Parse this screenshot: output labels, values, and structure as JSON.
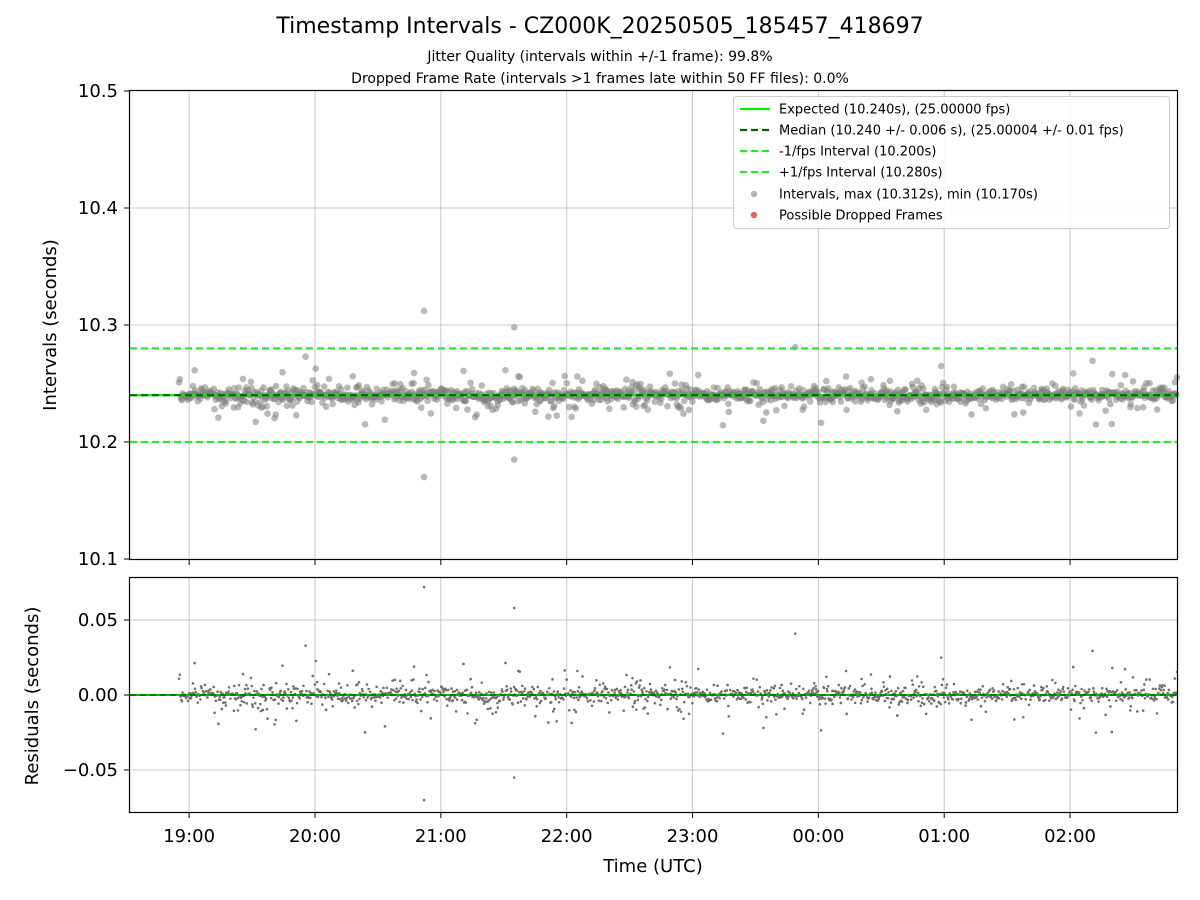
{
  "figure": {
    "title": "Timestamp Intervals - CZ000K_20250505_185457_418697",
    "subtitle_lines": [
      "Jitter Quality (intervals within +/-1 frame): 99.8%",
      "Dropped Frame Rate (intervals >1 frames late within 50 FF files): 0.0%"
    ]
  },
  "colors": {
    "expected": "#00ee00",
    "median": "#006400",
    "interval_band": "#22ee22",
    "points_top": "#808080",
    "points_residual": "#707070",
    "dropped": "#f06060",
    "grid": "#b0b0b0",
    "zero_line": "#00bb00"
  },
  "chart_data": [
    {
      "type": "scatter",
      "panel": "intervals",
      "ylabel": "Intervals (seconds)",
      "ylim": [
        10.1,
        10.5
      ],
      "yticks": [
        10.1,
        10.2,
        10.3,
        10.4,
        10.5
      ],
      "ytick_labels": [
        "10.1",
        "10.2",
        "10.3",
        "10.4",
        "10.5"
      ],
      "grid": true,
      "legend_position": "upper right",
      "x_is_time": true,
      "xlim_hours": [
        18.53,
        26.85
      ],
      "series": [
        {
          "name": "Expected (10.240s), (25.00000 fps)",
          "kind": "hline",
          "y": 10.24,
          "style": "solid"
        },
        {
          "name": "Median (10.240 +/- 0.006 s), (25.00004 +/- 0.01 fps)",
          "kind": "hline",
          "y": 10.24,
          "style": "dashed"
        },
        {
          "name": "-1/fps Interval (10.200s)",
          "kind": "hline",
          "y": 10.2,
          "style": "dashed"
        },
        {
          "name": "+1/fps Interval (10.280s)",
          "kind": "hline",
          "y": 10.28,
          "style": "dashed"
        },
        {
          "name": "Intervals, max (10.312s), min (10.170s)",
          "kind": "scatter",
          "x_range_hours": [
            18.92,
            26.85
          ],
          "center": 10.24,
          "std": 0.006,
          "notable_points": [
            {
              "x": "20:52",
              "y": 10.312
            },
            {
              "x": "20:52",
              "y": 10.17
            },
            {
              "x": "21:35",
              "y": 10.298
            },
            {
              "x": "21:35",
              "y": 10.185
            },
            {
              "x": "23:49",
              "y": 10.281
            }
          ]
        },
        {
          "name": "Possible Dropped Frames",
          "kind": "scatter",
          "count": 0
        }
      ]
    },
    {
      "type": "scatter",
      "panel": "residuals",
      "ylabel": "Residuals (seconds)",
      "xlabel": "Time (UTC)",
      "ylim": [
        -0.078,
        0.078
      ],
      "yticks": [
        0.05,
        0.0,
        -0.05
      ],
      "ytick_labels": [
        "0.05",
        "0.00",
        "−0.05"
      ],
      "grid": true,
      "xticks_hours": [
        19,
        20,
        21,
        22,
        23,
        24,
        25,
        26
      ],
      "xtick_labels": [
        "19:00",
        "20:00",
        "21:00",
        "22:00",
        "23:00",
        "00:00",
        "01:00",
        "02:00"
      ],
      "series": [
        {
          "kind": "hline",
          "y": 0.0
        },
        {
          "kind": "scatter",
          "residual_of": "Intervals",
          "min": -0.07,
          "max": 0.072
        }
      ]
    }
  ]
}
